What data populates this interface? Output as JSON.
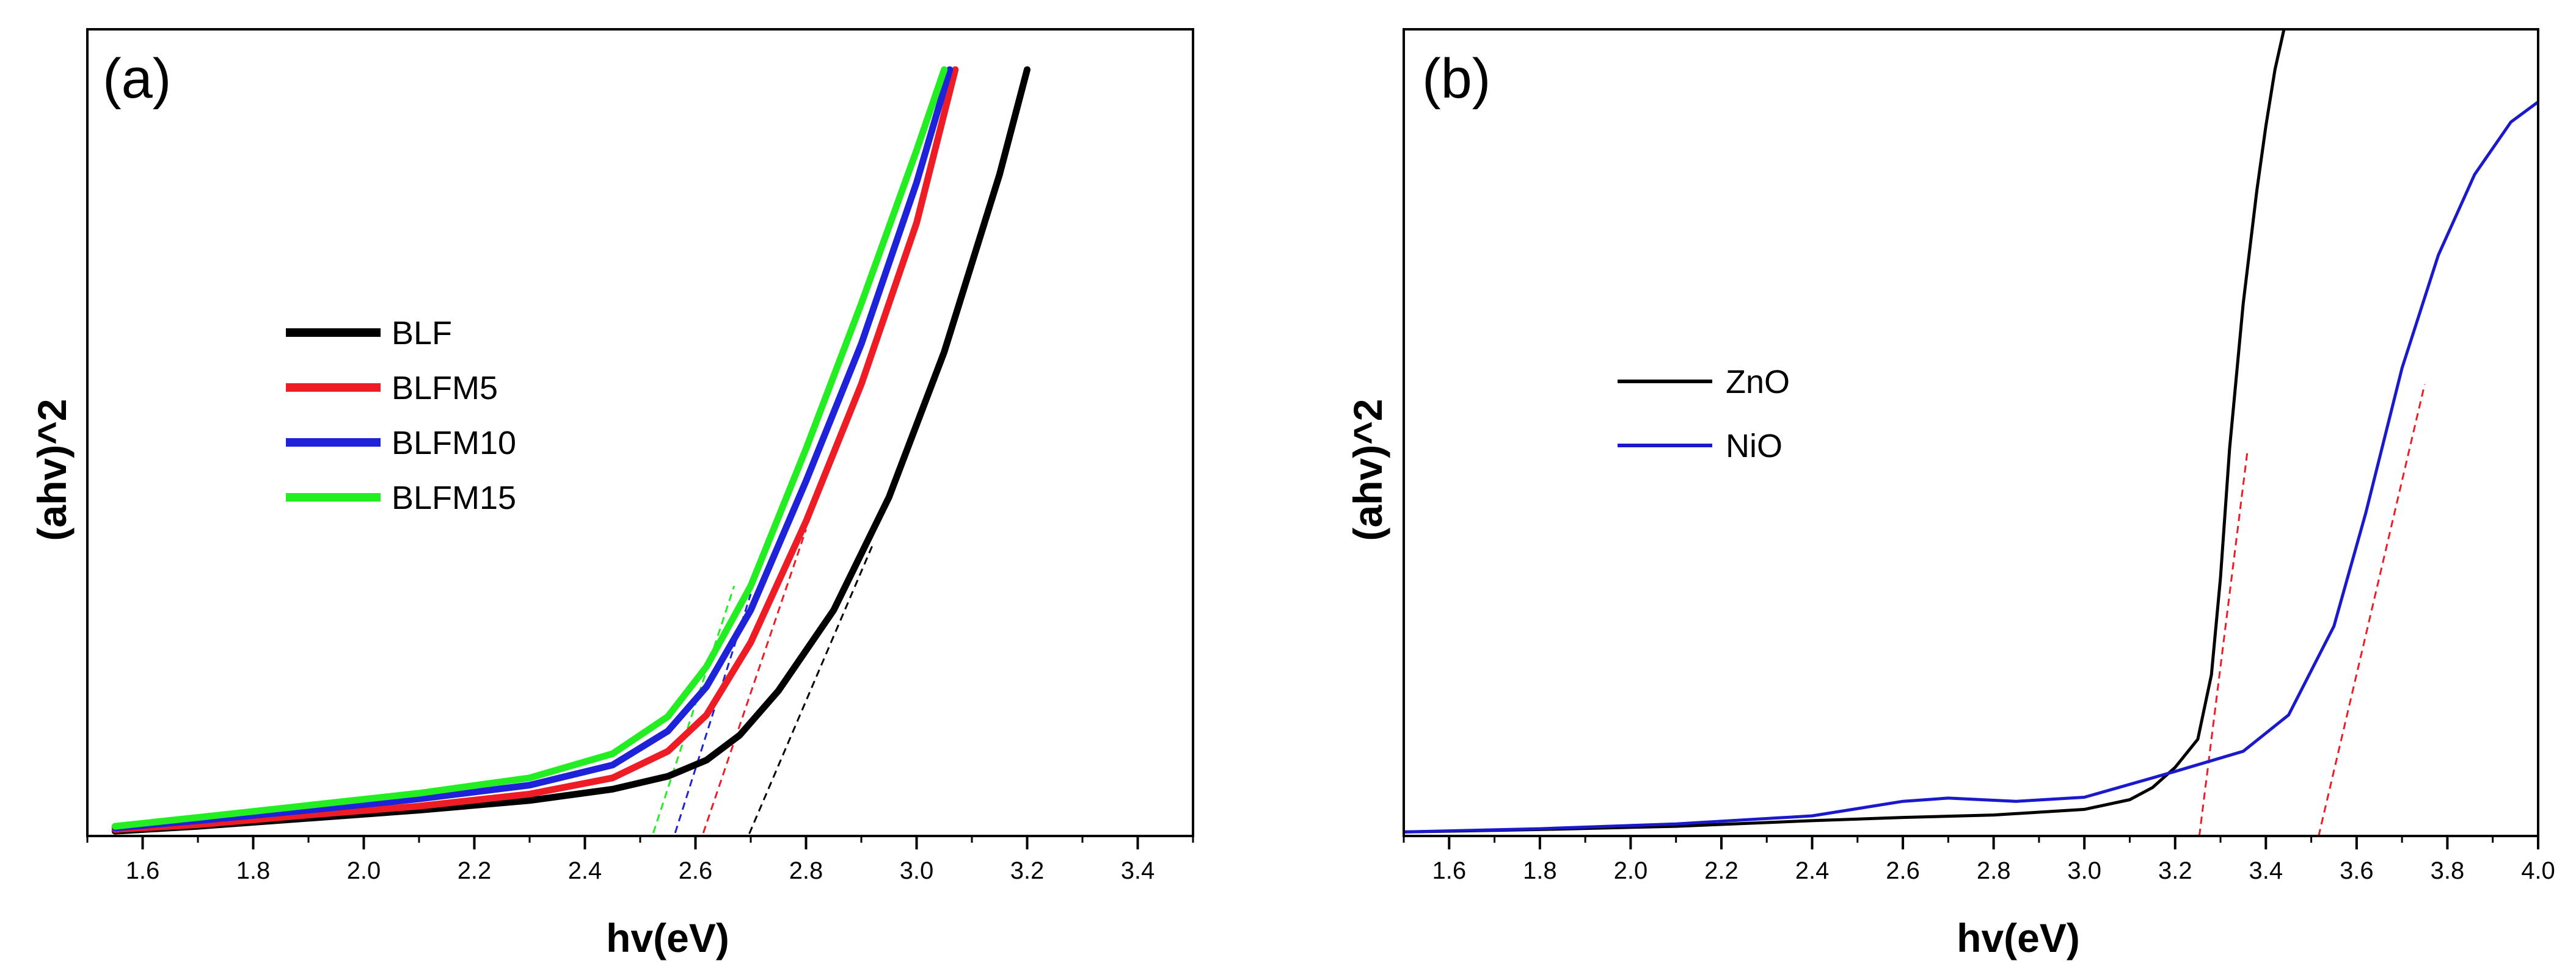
{
  "chart_data": [
    {
      "type": "line",
      "panel_label": "(a)",
      "xlabel": "hv(eV)",
      "ylabel": "(ahv)^2",
      "xlim": [
        1.5,
        3.5
      ],
      "ylim": [
        0,
        100
      ],
      "xticks": [
        "1.6",
        "1.8",
        "2.0",
        "2.2",
        "2.4",
        "2.6",
        "2.8",
        "3.0",
        "3.2",
        "3.4"
      ],
      "legend_position": "center-left",
      "series": [
        {
          "name": "BLF",
          "color": "#000000",
          "x": [
            1.55,
            1.7,
            1.9,
            2.1,
            2.3,
            2.45,
            2.55,
            2.62,
            2.68,
            2.75,
            2.85,
            2.95,
            3.05,
            3.15,
            3.2
          ],
          "y": [
            0.6,
            1.2,
            2.2,
            3.2,
            4.4,
            5.8,
            7.4,
            9.4,
            12.5,
            18.0,
            28.0,
            42.0,
            60.0,
            82.0,
            95.0
          ]
        },
        {
          "name": "BLFM5",
          "color": "#ee1c25",
          "x": [
            1.55,
            1.7,
            1.9,
            2.1,
            2.3,
            2.45,
            2.55,
            2.62,
            2.7,
            2.8,
            2.9,
            3.0,
            3.07
          ],
          "y": [
            0.8,
            1.4,
            2.6,
            3.7,
            5.2,
            7.2,
            10.5,
            15.0,
            24.0,
            39.0,
            56.0,
            76.0,
            95.0
          ]
        },
        {
          "name": "BLFM10",
          "color": "#1e22d8",
          "x": [
            1.55,
            1.7,
            1.9,
            2.1,
            2.3,
            2.45,
            2.55,
            2.62,
            2.7,
            2.8,
            2.9,
            3.0,
            3.06
          ],
          "y": [
            1.0,
            1.9,
            3.2,
            4.6,
            6.3,
            8.8,
            13.0,
            18.5,
            28.0,
            44.0,
            61.0,
            81.0,
            95.0
          ]
        },
        {
          "name": "BLFM15",
          "color": "#22ee22",
          "x": [
            1.55,
            1.7,
            1.9,
            2.1,
            2.3,
            2.45,
            2.55,
            2.62,
            2.7,
            2.8,
            2.9,
            3.0,
            3.05
          ],
          "y": [
            1.2,
            2.3,
            3.8,
            5.3,
            7.2,
            10.2,
            14.8,
            21.0,
            31.0,
            48.0,
            66.0,
            85.0,
            95.0
          ]
        }
      ],
      "tangents": [
        {
          "series": "BLF",
          "color": "#000000",
          "x": [
            2.68,
            2.92
          ],
          "y": [
            -2.5,
            36.0
          ]
        },
        {
          "series": "BLFM5",
          "color": "#ee1c25",
          "x": [
            2.6,
            2.8
          ],
          "y": [
            -2.5,
            38.0
          ]
        },
        {
          "series": "BLFM10",
          "color": "#1e22d8",
          "x": [
            2.55,
            2.7
          ],
          "y": [
            -2.5,
            30.0
          ]
        },
        {
          "series": "BLFM15",
          "color": "#22ee22",
          "x": [
            2.51,
            2.67
          ],
          "y": [
            -2.5,
            31.0
          ]
        }
      ]
    },
    {
      "type": "line",
      "panel_label": "(b)",
      "xlabel": "hv(eV)",
      "ylabel": "(ahv)^2",
      "xlim": [
        1.5,
        4.0
      ],
      "ylim": [
        0,
        100
      ],
      "xticks": [
        "1.6",
        "1.8",
        "2.0",
        "2.2",
        "2.4",
        "2.6",
        "2.8",
        "3.0",
        "3.2",
        "3.4",
        "3.6",
        "3.8",
        "4.0"
      ],
      "legend_position": "center-left",
      "series": [
        {
          "name": "ZnO",
          "color": "#000000",
          "x": [
            1.5,
            1.8,
            2.1,
            2.4,
            2.6,
            2.8,
            3.0,
            3.1,
            3.15,
            3.2,
            3.25,
            3.28,
            3.3,
            3.32,
            3.35,
            3.38,
            3.4,
            3.42,
            3.44
          ],
          "y": [
            0.5,
            0.8,
            1.2,
            1.9,
            2.3,
            2.6,
            3.3,
            4.5,
            6.0,
            8.5,
            12.0,
            20.0,
            32.0,
            48.0,
            66.0,
            80.0,
            88.0,
            95.0,
            100.0
          ]
        },
        {
          "name": "NiO",
          "color": "#1a1acc",
          "x": [
            1.5,
            1.8,
            2.1,
            2.4,
            2.6,
            2.7,
            2.85,
            3.0,
            3.2,
            3.35,
            3.45,
            3.55,
            3.62,
            3.7,
            3.78,
            3.86,
            3.94,
            4.0
          ],
          "y": [
            0.5,
            0.9,
            1.5,
            2.5,
            4.3,
            4.7,
            4.3,
            4.8,
            8.0,
            10.5,
            15.0,
            26.0,
            40.0,
            58.0,
            72.0,
            82.0,
            88.5,
            91.0
          ]
        }
      ],
      "tangents": [
        {
          "series": "ZnO",
          "color": "#ee1c25",
          "x": [
            3.25,
            3.36
          ],
          "y": [
            -1.5,
            48.0
          ]
        },
        {
          "series": "NiO",
          "color": "#ee1c25",
          "x": [
            3.51,
            3.75
          ],
          "y": [
            -1.5,
            56.0
          ]
        }
      ]
    }
  ]
}
